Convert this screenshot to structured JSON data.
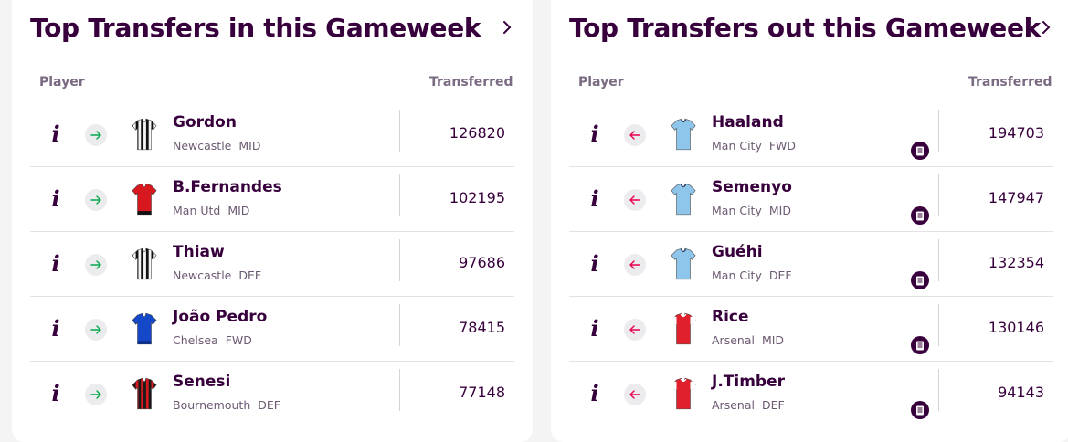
{
  "transfers_in": {
    "title": "Top Transfers in this Gameweek",
    "col_player": "Player",
    "col_transferred": "Transferred",
    "direction_color": "#05a84a",
    "rows": [
      {
        "name": "Gordon",
        "team": "Newcastle",
        "pos": "MID",
        "transferred": "126820",
        "kit": "newcastle"
      },
      {
        "name": "B.Fernandes",
        "team": "Man Utd",
        "pos": "MID",
        "transferred": "102195",
        "kit": "manutd"
      },
      {
        "name": "Thiaw",
        "team": "Newcastle",
        "pos": "DEF",
        "transferred": "97686",
        "kit": "newcastle"
      },
      {
        "name": "João Pedro",
        "team": "Chelsea",
        "pos": "FWD",
        "transferred": "78415",
        "kit": "chelsea"
      },
      {
        "name": "Senesi",
        "team": "Bournemouth",
        "pos": "DEF",
        "transferred": "77148",
        "kit": "bournemouth"
      }
    ]
  },
  "transfers_out": {
    "title": "Top Transfers out this Gameweek",
    "col_player": "Player",
    "col_transferred": "Transferred",
    "direction_color": "#e90052",
    "rows": [
      {
        "name": "Haaland",
        "team": "Man City",
        "pos": "FWD",
        "transferred": "194703",
        "kit": "mancity"
      },
      {
        "name": "Semenyo",
        "team": "Man City",
        "pos": "MID",
        "transferred": "147947",
        "kit": "mancity"
      },
      {
        "name": "Guéhi",
        "team": "Man City",
        "pos": "DEF",
        "transferred": "132354",
        "kit": "mancity"
      },
      {
        "name": "Rice",
        "team": "Arsenal",
        "pos": "MID",
        "transferred": "130146",
        "kit": "arsenal"
      },
      {
        "name": "J.Timber",
        "team": "Arsenal",
        "pos": "DEF",
        "transferred": "94143",
        "kit": "arsenal"
      }
    ]
  },
  "colors": {
    "brand": "#37003c",
    "in_arrow": "#05a84a",
    "out_arrow": "#e90052"
  },
  "icons": {
    "info": "info-icon",
    "in": "arrow-right-icon",
    "out": "arrow-left-icon",
    "news": "news-note-icon",
    "chevron": "chevron-right-icon"
  }
}
